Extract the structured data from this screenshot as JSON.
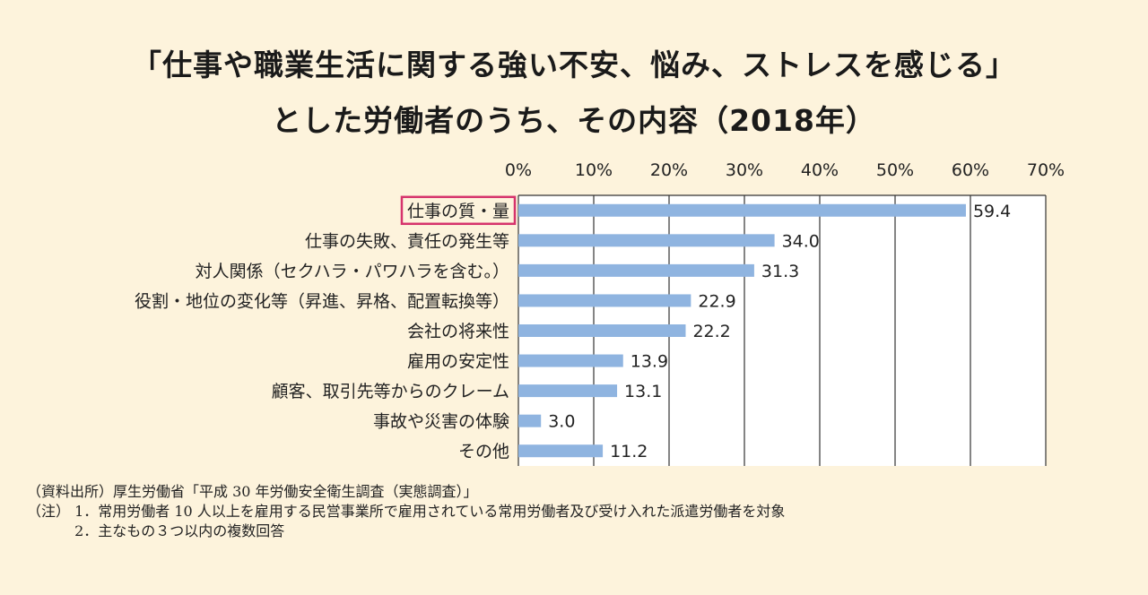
{
  "chart_data": {
    "type": "bar",
    "orientation": "horizontal",
    "title_line1": "「仕事や職業生活に関する強い不安、悩み、ストレスを感じる」",
    "title_line2": "とした労働者のうち、その内容（2018年）",
    "categories": [
      "仕事の質・量",
      "仕事の失敗、責任の発生等",
      "対人関係（セクハラ・パワハラを含む。）",
      "役割・地位の変化等（昇進、昇格、配置転換等）",
      "会社の将来性",
      "雇用の安定性",
      "顧客、取引先等からのクレーム",
      "事故や災害の体験",
      "その他"
    ],
    "values": [
      59.4,
      34.0,
      31.3,
      22.9,
      22.2,
      13.9,
      13.1,
      3.0,
      11.2
    ],
    "value_labels": [
      "59.4",
      "34.0",
      "31.3",
      "22.9",
      "22.2",
      "13.9",
      "13.1",
      "3.0",
      "11.2"
    ],
    "xlim": [
      0,
      70
    ],
    "x_ticks": [
      "0%",
      "10%",
      "20%",
      "30%",
      "40%",
      "50%",
      "60%",
      "70%"
    ],
    "x_axis_position": "top",
    "grid": true,
    "bar_color": "#8fb4e0",
    "highlight_category_index": 0,
    "highlight_color": "#d6336c"
  },
  "notes": {
    "source": "（資料出所）厚生労働省「平成 30 年労働安全衛生調査（実態調査）」",
    "note1": "（注） 1．常用労働者 10 人以上を雇用する民営事業所で雇用されている常用労働者及び受け入れた派遣労働者を対象",
    "note2": "　　　 2．主なもの３つ以内の複数回答"
  }
}
